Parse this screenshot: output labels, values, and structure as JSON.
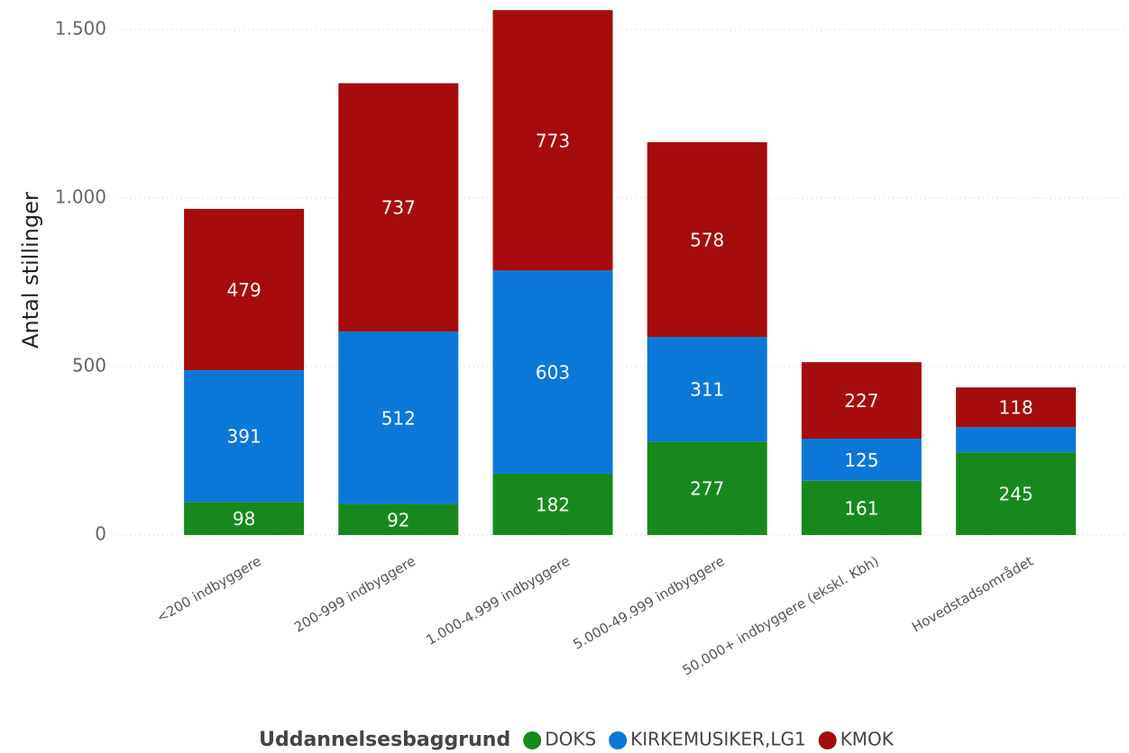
{
  "chart_data": {
    "type": "stacked_bar",
    "y_label": "Antal stillinger",
    "legend_title": "Uddannelsesbaggrund",
    "categories": [
      "<200 indbyggere",
      "200-999 indbyggere",
      "1.000-4.999 indbyggere",
      "5.000-49.999 indbyggere",
      "50.000+ indbyggere (ekskl. Kbh)",
      "Hovedstadsområdet"
    ],
    "series": [
      {
        "name": "DOKS",
        "color": "#17891c",
        "values": [
          98,
          92,
          182,
          277,
          161,
          245
        ]
      },
      {
        "name": "KIRKEMUSIKER,LG1",
        "color": "#0b78d9",
        "values": [
          391,
          512,
          603,
          311,
          125,
          75
        ],
        "value_labels": [
          "391",
          "512",
          "603",
          "311",
          "125",
          null
        ]
      },
      {
        "name": "KMOK",
        "color": "#a60c0c",
        "values": [
          479,
          737,
          773,
          578,
          227,
          118
        ]
      }
    ],
    "ylim": [
      0,
      1588
    ],
    "yticks": [
      0,
      500,
      {
        "value": 1000,
        "label": "1.000"
      },
      {
        "value": 1500,
        "label": "1.500"
      }
    ],
    "grid": true
  }
}
